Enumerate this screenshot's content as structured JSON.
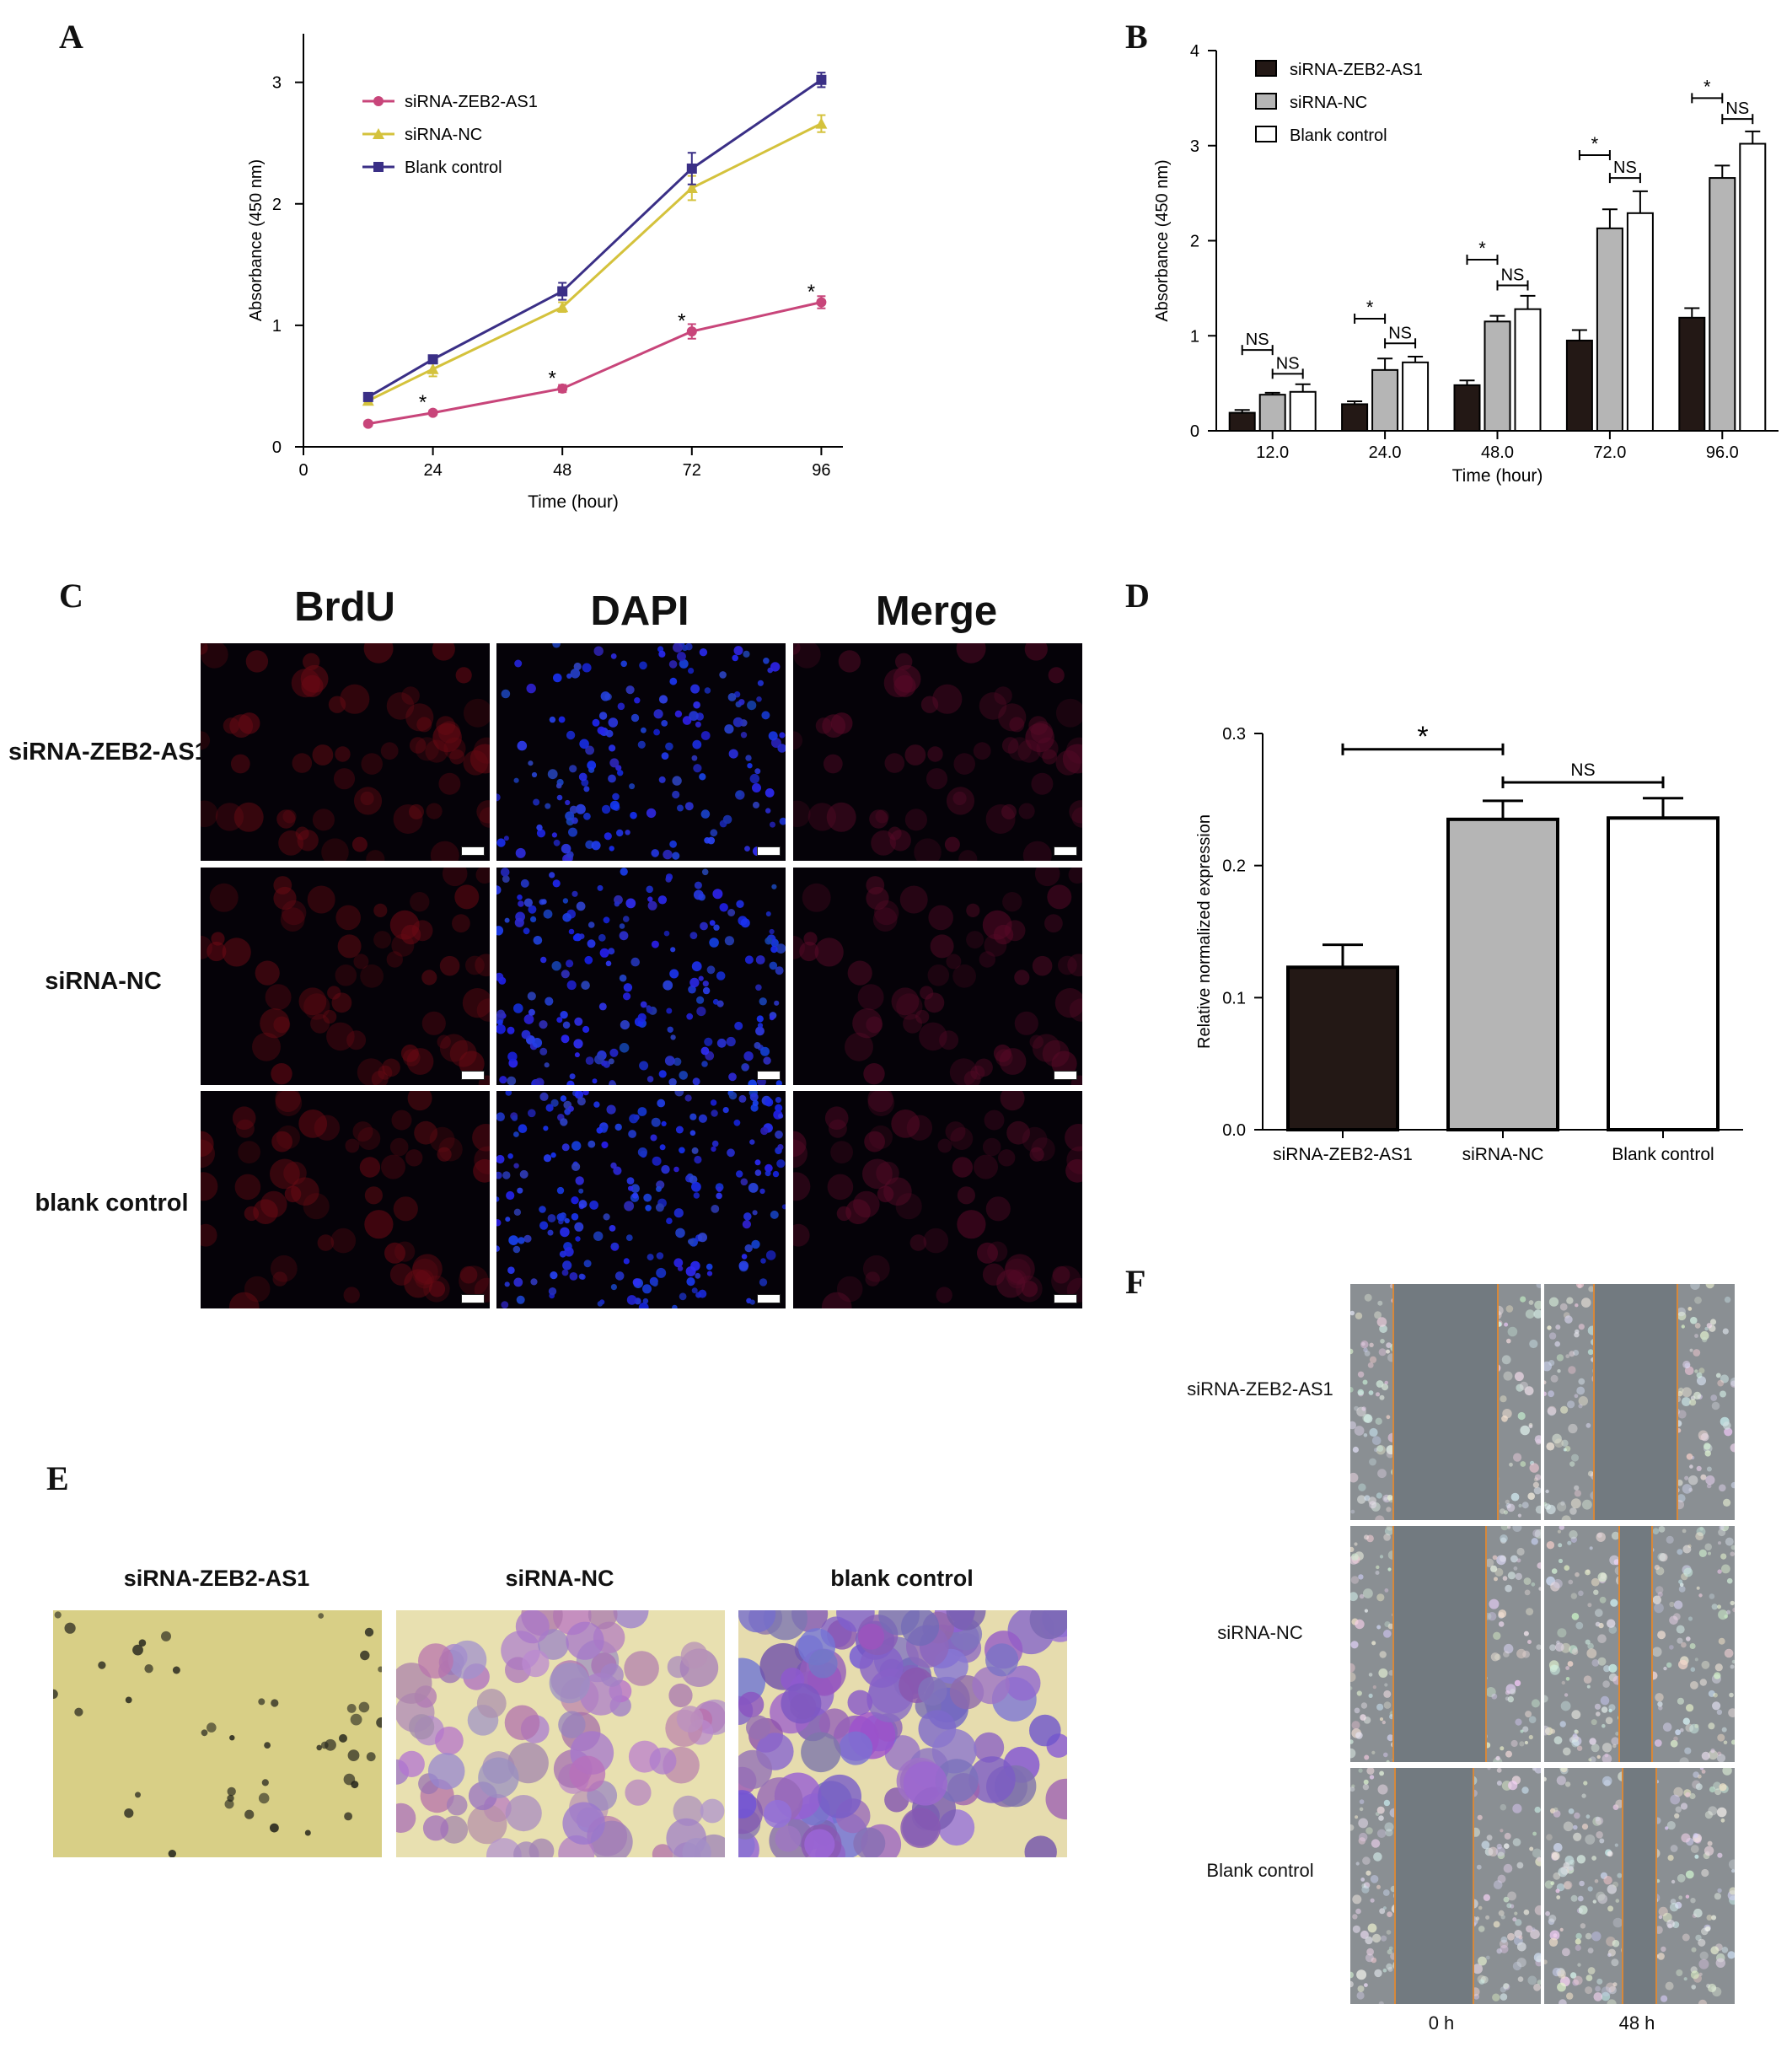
{
  "panels": {
    "A": "A",
    "B": "B",
    "C": "C",
    "D": "D",
    "E": "E",
    "F": "F"
  },
  "colors": {
    "zeb2": "#c8457a",
    "nc": "#d4c23c",
    "blank": "#3a2f86",
    "bar_dark": "#231815",
    "bar_grey": "#b5b5b5",
    "bar_white": "#ffffff"
  },
  "chart_data": [
    {
      "id": "A",
      "type": "line",
      "xlabel": "Time (hour)",
      "ylabel": "Absorbance (450 nm)",
      "xlim": [
        0,
        100
      ],
      "ylim": [
        0,
        3.4
      ],
      "xticks": [
        "0",
        "24",
        "48",
        "72",
        "96"
      ],
      "yticks": [
        "0",
        "1",
        "2",
        "3"
      ],
      "x": [
        12,
        24,
        48,
        72,
        96
      ],
      "series": [
        {
          "name": "siRNA-ZEB2-AS1",
          "values": [
            0.19,
            0.28,
            0.48,
            0.95,
            1.19
          ],
          "errors": [
            0.02,
            0.02,
            0.03,
            0.06,
            0.05
          ],
          "marker": "circle",
          "color": "#c8457a"
        },
        {
          "name": "siRNA-NC",
          "values": [
            0.38,
            0.64,
            1.15,
            2.13,
            2.66
          ],
          "errors": [
            0.02,
            0.06,
            0.04,
            0.1,
            0.07
          ],
          "marker": "triangle",
          "color": "#d4c23c"
        },
        {
          "name": "Blank control",
          "values": [
            0.41,
            0.72,
            1.28,
            2.29,
            3.02
          ],
          "errors": [
            0.02,
            0.03,
            0.07,
            0.13,
            0.06
          ],
          "marker": "square",
          "color": "#3a2f86"
        }
      ],
      "annotations": [
        {
          "x": 24,
          "y": 0.38,
          "text": "*"
        },
        {
          "x": 48,
          "y": 0.58,
          "text": "*"
        },
        {
          "x": 72,
          "y": 1.05,
          "text": "*"
        },
        {
          "x": 96,
          "y": 1.29,
          "text": "*"
        }
      ],
      "legend": "top-left"
    },
    {
      "id": "B",
      "type": "bar",
      "xlabel": "Time (hour)",
      "ylabel": "Absorbance (450 nm)",
      "ylim": [
        0,
        4
      ],
      "yticks": [
        "0",
        "1",
        "2",
        "3",
        "4"
      ],
      "categories": [
        "12.0",
        "24.0",
        "48.0",
        "72.0",
        "96.0"
      ],
      "series": [
        {
          "name": "siRNA-ZEB2-AS1",
          "values": [
            0.19,
            0.28,
            0.48,
            0.95,
            1.19
          ],
          "errors": [
            0.03,
            0.03,
            0.05,
            0.11,
            0.1
          ],
          "color": "#231815"
        },
        {
          "name": "siRNA-NC",
          "values": [
            0.38,
            0.64,
            1.15,
            2.13,
            2.66
          ],
          "errors": [
            0.02,
            0.12,
            0.06,
            0.2,
            0.13
          ],
          "color": "#b5b5b5"
        },
        {
          "name": "Blank control",
          "values": [
            0.41,
            0.72,
            1.28,
            2.29,
            3.02
          ],
          "errors": [
            0.08,
            0.06,
            0.14,
            0.23,
            0.13
          ],
          "color": "#ffffff"
        }
      ],
      "significance": [
        {
          "group": 0,
          "from": 0,
          "to": 1,
          "y": 0.85,
          "text": "NS"
        },
        {
          "group": 0,
          "from": 1,
          "to": 2,
          "y": 0.6,
          "text": "NS"
        },
        {
          "group": 1,
          "from": 0,
          "to": 1,
          "y": 1.18,
          "text": "*"
        },
        {
          "group": 1,
          "from": 1,
          "to": 2,
          "y": 0.92,
          "text": "NS"
        },
        {
          "group": 2,
          "from": 0,
          "to": 1,
          "y": 1.8,
          "text": "*"
        },
        {
          "group": 2,
          "from": 1,
          "to": 2,
          "y": 1.53,
          "text": "NS"
        },
        {
          "group": 3,
          "from": 0,
          "to": 1,
          "y": 2.9,
          "text": "*"
        },
        {
          "group": 3,
          "from": 1,
          "to": 2,
          "y": 2.66,
          "text": "NS"
        },
        {
          "group": 4,
          "from": 0,
          "to": 1,
          "y": 3.5,
          "text": "*"
        },
        {
          "group": 4,
          "from": 1,
          "to": 2,
          "y": 3.28,
          "text": "NS"
        }
      ],
      "legend": "top-left"
    },
    {
      "id": "D",
      "type": "bar",
      "xlabel": "",
      "ylabel": "Relative normalized expression",
      "ylim": [
        0,
        0.3
      ],
      "yticks": [
        "0.0",
        "0.1",
        "0.2",
        "0.3"
      ],
      "categories": [
        "siRNA-ZEB2-AS1",
        "siRNA-NC",
        "Blank control"
      ],
      "values": [
        0.123,
        0.235,
        0.236
      ],
      "errors": [
        0.017,
        0.014,
        0.015
      ],
      "colors": [
        "#231815",
        "#b5b5b5",
        "#ffffff"
      ],
      "significance": [
        {
          "from": 0,
          "to": 1,
          "y": 0.288,
          "text": "*"
        },
        {
          "from": 1,
          "to": 2,
          "y": 0.263,
          "text": "NS"
        }
      ]
    }
  ],
  "panel_c": {
    "column_headers": [
      "BrdU",
      "DAPI",
      "Merge"
    ],
    "row_labels": [
      "siRNA-ZEB2-AS1",
      "siRNA-NC",
      "blank control"
    ]
  },
  "panel_e": {
    "labels": [
      "siRNA-ZEB2-AS1",
      "siRNA-NC",
      "blank control"
    ]
  },
  "panel_f": {
    "row_labels": [
      "siRNA-ZEB2-AS1",
      "siRNA-NC",
      "Blank control"
    ],
    "column_labels": [
      "0 h",
      "48 h"
    ]
  }
}
